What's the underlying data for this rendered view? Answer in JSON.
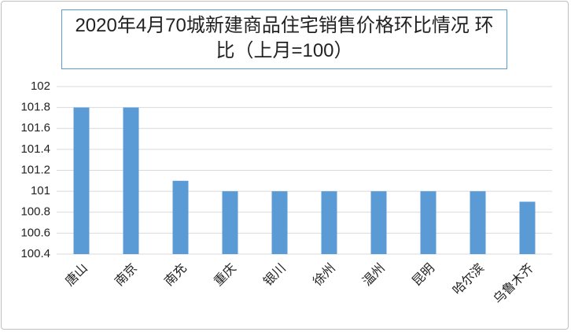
{
  "chart_data": {
    "type": "bar",
    "title": "2020年4月70城新建商品住宅销售价格环比情况 环比（上月=100）",
    "categories": [
      "唐山",
      "南京",
      "南充",
      "重庆",
      "银川",
      "徐州",
      "温州",
      "昆明",
      "哈尔滨",
      "乌鲁木齐"
    ],
    "values": [
      101.8,
      101.8,
      101.1,
      101.0,
      101.0,
      101.0,
      101.0,
      101.0,
      101.0,
      100.9
    ],
    "color": "#5b9bd5",
    "ylim": [
      100.4,
      102
    ],
    "yticks": [
      100.4,
      100.6,
      100.8,
      101,
      101.2,
      101.4,
      101.6,
      101.8,
      102
    ],
    "grid": true
  }
}
